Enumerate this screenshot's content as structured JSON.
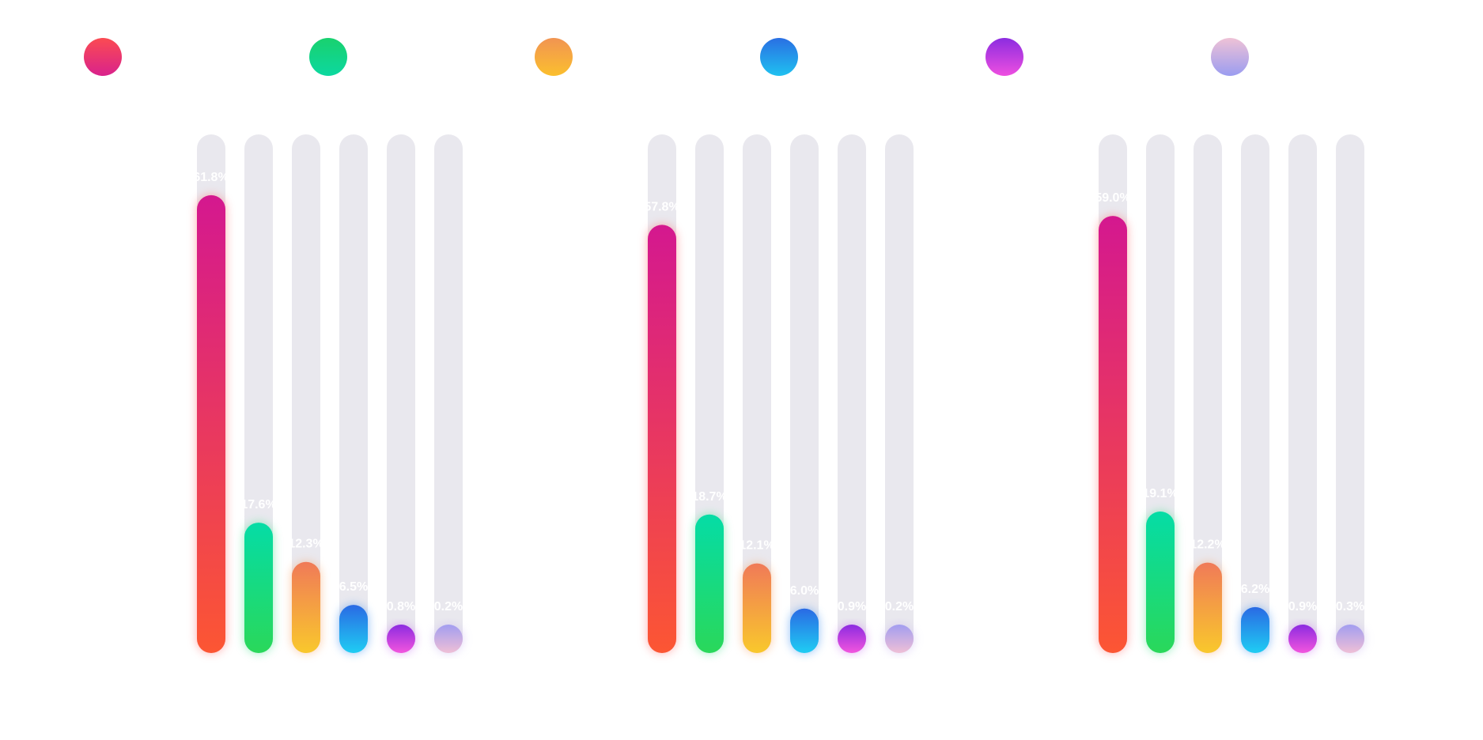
{
  "chart_data": {
    "type": "bar",
    "unit": "%",
    "ylim": [
      0,
      70
    ],
    "legend": {
      "position": "top",
      "entries": [
        {
          "color_top": "#fb4b52",
          "color_bottom": "#d9228c"
        },
        {
          "color_top": "#19d16e",
          "color_bottom": "#0cd8a0"
        },
        {
          "color_top": "#f19452",
          "color_bottom": "#fbbf2e"
        },
        {
          "color_top": "#2a6fe3",
          "color_bottom": "#1fc1f0"
        },
        {
          "color_top": "#8c2ce0",
          "color_bottom": "#ee4fe0"
        },
        {
          "color_top": "#efc2d6",
          "color_bottom": "#9a9cf0"
        }
      ]
    },
    "bar_gradients": [
      {
        "top": "#d4188f",
        "bottom": "#fc5633",
        "glow": "#ff6a6a"
      },
      {
        "top": "#05dca6",
        "bottom": "#2ad85a",
        "glow": "#3fe08a"
      },
      {
        "top": "#f07a58",
        "bottom": "#f9c82c",
        "glow": "#f7a060"
      },
      {
        "top": "#2a6ae4",
        "bottom": "#1fcdf3",
        "glow": "#3a8ef0"
      },
      {
        "top": "#8c2be0",
        "bottom": "#f355de",
        "glow": "#c46af0"
      },
      {
        "top": "#a29df0",
        "bottom": "#efbfd6",
        "glow": "#c6b2f0"
      }
    ],
    "track_color": "#e9e8ee",
    "groups": [
      {
        "values": [
          61.8,
          17.6,
          12.3,
          6.5,
          0.8,
          0.2
        ],
        "labels": [
          "61.8%",
          "17.6%",
          "12.3%",
          "6.5%",
          "0.8%",
          "0.2%"
        ]
      },
      {
        "values": [
          57.8,
          18.7,
          12.1,
          6.0,
          0.9,
          0.2
        ],
        "labels": [
          "57.8%",
          "18.7%",
          "12.1%",
          "6.0%",
          "0.9%",
          "0.2%"
        ]
      },
      {
        "values": [
          59.0,
          19.1,
          12.2,
          6.2,
          0.9,
          0.3
        ],
        "labels": [
          "59.0%",
          "19.1%",
          "12.2%",
          "6.2%",
          "0.9%",
          "0.3%"
        ]
      }
    ]
  }
}
